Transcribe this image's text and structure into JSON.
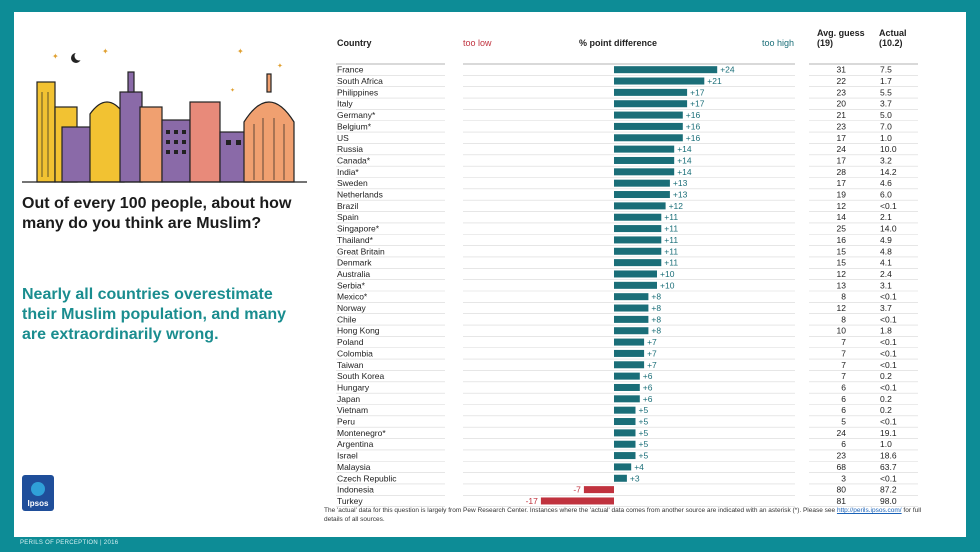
{
  "question": "Out of every 100 people, about how many do you think are Muslim?",
  "subhead": "Nearly all countries overestimate their Muslim population, and many are extraordinarily wrong.",
  "logo_text": "Ipsos",
  "footer": "PERILS OF PERCEPTION | 2016",
  "note_part1": "The 'actual' data for this question is largely from Pew Research Center. Instances where the 'actual' data comes from another source are indicated with an asterisk (*). Please see ",
  "note_link": "http://perils.ipsos.com/",
  "note_part2": " for full details of all sources.",
  "colors": {
    "teal": "#1a6e78",
    "red": "#c0323e",
    "frame": "#0d8c96",
    "subhead": "#1a8d8f"
  },
  "chart_data": {
    "type": "bar",
    "orientation": "horizontal",
    "column_headers": {
      "country": "Country",
      "too_low": "too low",
      "difference": "% point difference",
      "too_high": "too high",
      "guess": "Avg. guess",
      "guess_sub": "(19)",
      "actual": "Actual",
      "actual_sub": "(10.2)"
    },
    "xlim": [
      -20,
      28
    ],
    "rows": [
      {
        "country": "France",
        "diff": "+24",
        "value": 24,
        "guess": "31",
        "actual": "7.5"
      },
      {
        "country": "South Africa",
        "diff": "+21",
        "value": 21,
        "guess": "22",
        "actual": "1.7"
      },
      {
        "country": "Philippines",
        "diff": "+17",
        "value": 17,
        "guess": "23",
        "actual": "5.5"
      },
      {
        "country": "Italy",
        "diff": "+17",
        "value": 17,
        "guess": "20",
        "actual": "3.7"
      },
      {
        "country": "Germany*",
        "diff": "+16",
        "value": 16,
        "guess": "21",
        "actual": "5.0"
      },
      {
        "country": "Belgium*",
        "diff": "+16",
        "value": 16,
        "guess": "23",
        "actual": "7.0"
      },
      {
        "country": "US",
        "diff": "+16",
        "value": 16,
        "guess": "17",
        "actual": "1.0"
      },
      {
        "country": "Russia",
        "diff": "+14",
        "value": 14,
        "guess": "24",
        "actual": "10.0"
      },
      {
        "country": "Canada*",
        "diff": "+14",
        "value": 14,
        "guess": "17",
        "actual": "3.2"
      },
      {
        "country": "India*",
        "diff": "+14",
        "value": 14,
        "guess": "28",
        "actual": "14.2"
      },
      {
        "country": "Sweden",
        "diff": "+13",
        "value": 13,
        "guess": "17",
        "actual": "4.6"
      },
      {
        "country": "Netherlands",
        "diff": "+13",
        "value": 13,
        "guess": "19",
        "actual": "6.0"
      },
      {
        "country": "Brazil",
        "diff": "+12",
        "value": 12,
        "guess": "12",
        "actual": "<0.1"
      },
      {
        "country": "Spain",
        "diff": "+11",
        "value": 11,
        "guess": "14",
        "actual": "2.1"
      },
      {
        "country": "Singapore*",
        "diff": "+11",
        "value": 11,
        "guess": "25",
        "actual": "14.0"
      },
      {
        "country": "Thailand*",
        "diff": "+11",
        "value": 11,
        "guess": "16",
        "actual": "4.9"
      },
      {
        "country": "Great Britain",
        "diff": "+11",
        "value": 11,
        "guess": "15",
        "actual": "4.8"
      },
      {
        "country": "Denmark",
        "diff": "+11",
        "value": 11,
        "guess": "15",
        "actual": "4.1"
      },
      {
        "country": "Australia",
        "diff": "+10",
        "value": 10,
        "guess": "12",
        "actual": "2.4"
      },
      {
        "country": "Serbia*",
        "diff": "+10",
        "value": 10,
        "guess": "13",
        "actual": "3.1"
      },
      {
        "country": "Mexico*",
        "diff": "+8",
        "value": 8,
        "guess": "8",
        "actual": "<0.1"
      },
      {
        "country": "Norway",
        "diff": "+8",
        "value": 8,
        "guess": "12",
        "actual": "3.7"
      },
      {
        "country": "Chile",
        "diff": "+8",
        "value": 8,
        "guess": "8",
        "actual": "<0.1"
      },
      {
        "country": "Hong Kong",
        "diff": "+8",
        "value": 8,
        "guess": "10",
        "actual": "1.8"
      },
      {
        "country": "Poland",
        "diff": "+7",
        "value": 7,
        "guess": "7",
        "actual": "<0.1"
      },
      {
        "country": "Colombia",
        "diff": "+7",
        "value": 7,
        "guess": "7",
        "actual": "<0.1"
      },
      {
        "country": "Taiwan",
        "diff": "+7",
        "value": 7,
        "guess": "7",
        "actual": "<0.1"
      },
      {
        "country": "South Korea",
        "diff": "+6",
        "value": 6,
        "guess": "7",
        "actual": "0.2"
      },
      {
        "country": "Hungary",
        "diff": "+6",
        "value": 6,
        "guess": "6",
        "actual": "<0.1"
      },
      {
        "country": "Japan",
        "diff": "+6",
        "value": 6,
        "guess": "6",
        "actual": "0.2"
      },
      {
        "country": "Vietnam",
        "diff": "+5",
        "value": 5,
        "guess": "6",
        "actual": "0.2"
      },
      {
        "country": "Peru",
        "diff": "+5",
        "value": 5,
        "guess": "5",
        "actual": "<0.1"
      },
      {
        "country": "Montenegro*",
        "diff": "+5",
        "value": 5,
        "guess": "24",
        "actual": "19.1"
      },
      {
        "country": "Argentina",
        "diff": "+5",
        "value": 5,
        "guess": "6",
        "actual": "1.0"
      },
      {
        "country": "Israel",
        "diff": "+5",
        "value": 5,
        "guess": "23",
        "actual": "18.6"
      },
      {
        "country": "Malaysia",
        "diff": "+4",
        "value": 4,
        "guess": "68",
        "actual": "63.7"
      },
      {
        "country": "Czech Republic",
        "diff": "+3",
        "value": 3,
        "guess": "3",
        "actual": "<0.1"
      },
      {
        "country": "Indonesia",
        "diff": "-7",
        "value": -7,
        "guess": "80",
        "actual": "87.2"
      },
      {
        "country": "Turkey",
        "diff": "-17",
        "value": -17,
        "guess": "81",
        "actual": "98.0"
      }
    ]
  }
}
